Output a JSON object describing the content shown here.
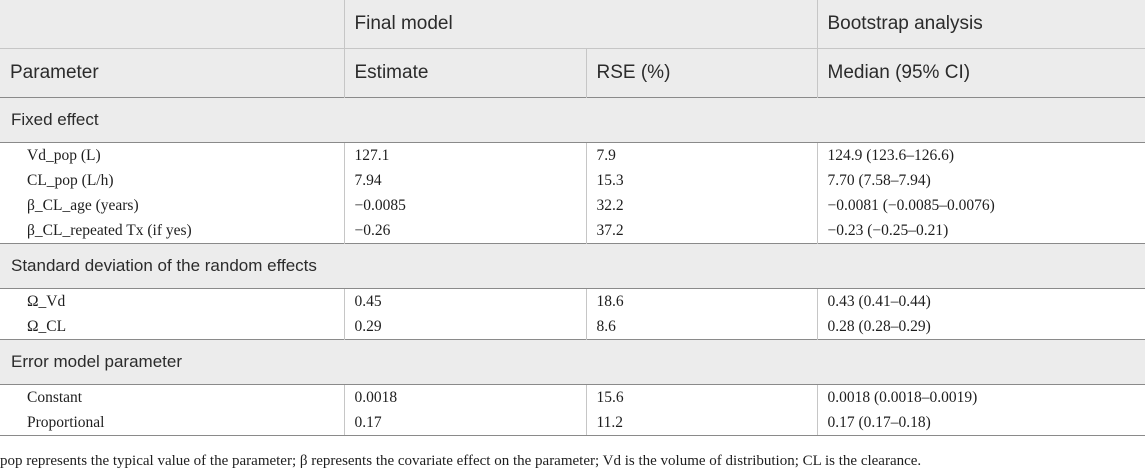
{
  "header": {
    "group_final": "Final model",
    "group_bootstrap": "Bootstrap analysis",
    "col_parameter": "Parameter",
    "col_estimate": "Estimate",
    "col_rse": "RSE (%)",
    "col_median": "Median (95% CI)"
  },
  "sections": [
    {
      "title": "Fixed effect",
      "rows": [
        {
          "param": "Vd_pop (L)",
          "estimate": "127.1",
          "rse": "7.9",
          "median": "124.9 (123.6–126.6)"
        },
        {
          "param": "CL_pop (L/h)",
          "estimate": "7.94",
          "rse": "15.3",
          "median": "7.70 (7.58–7.94)"
        },
        {
          "param": "β_CL_age (years)",
          "estimate": "−0.0085",
          "rse": "32.2",
          "median": "−0.0081 (−0.0085–0.0076)"
        },
        {
          "param": "β_CL_repeated Tx (if yes)",
          "estimate": "−0.26",
          "rse": "37.2",
          "median": "−0.23 (−0.25–0.21)"
        }
      ]
    },
    {
      "title": "Standard deviation of the random effects",
      "rows": [
        {
          "param": "Ω_Vd",
          "estimate": "0.45",
          "rse": "18.6",
          "median": "0.43 (0.41–0.44)"
        },
        {
          "param": "Ω_CL",
          "estimate": "0.29",
          "rse": "8.6",
          "median": "0.28 (0.28–0.29)"
        }
      ]
    },
    {
      "title": "Error model parameter",
      "rows": [
        {
          "param": "Constant",
          "estimate": "0.0018",
          "rse": "15.6",
          "median": "0.0018 (0.0018–0.0019)"
        },
        {
          "param": "Proportional",
          "estimate": "0.17",
          "rse": "11.2",
          "median": "0.17 (0.17–0.18)"
        }
      ]
    }
  ],
  "footnote": "pop represents the typical value of the parameter; β represents the covariate effect on the parameter; Vd is the volume of distribution; CL is the clearance."
}
